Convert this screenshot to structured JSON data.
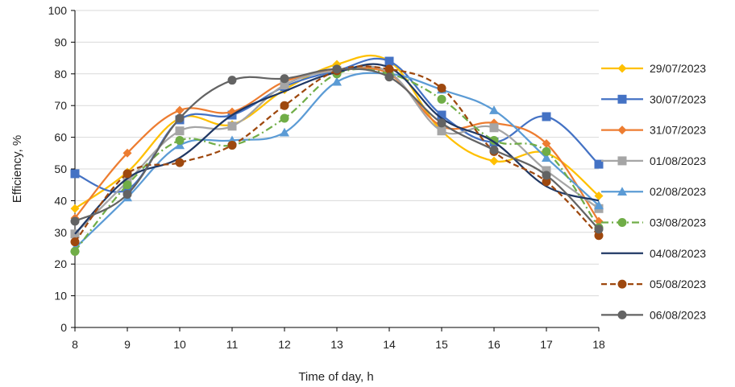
{
  "chart_data": {
    "type": "line",
    "title": "",
    "xlabel": "Time of day, h",
    "ylabel": "Efficiency, %",
    "xlim": [
      8,
      18
    ],
    "ylim": [
      0,
      100
    ],
    "x_ticks": [
      "8",
      "9",
      "10",
      "11",
      "12",
      "13",
      "14",
      "15",
      "16",
      "17",
      "18"
    ],
    "y_ticks": [
      "0",
      "10",
      "20",
      "30",
      "40",
      "50",
      "60",
      "70",
      "80",
      "90",
      "100"
    ],
    "grid": "horizontal",
    "legend_position": "right",
    "x": [
      8,
      9,
      10,
      11,
      12,
      13,
      14,
      15,
      16,
      17,
      18
    ],
    "series": [
      {
        "name": "29/07/2023",
        "color": "#FFC000",
        "marker": "diamond",
        "dash": "solid",
        "values": [
          37.5,
          49,
          66,
          64,
          75,
          83,
          84,
          62,
          52.5,
          55,
          41.5
        ]
      },
      {
        "name": "30/07/2023",
        "color": "#4472C4",
        "marker": "square",
        "dash": "solid",
        "values": [
          48.5,
          43.5,
          65.5,
          67,
          76,
          81,
          84,
          67,
          58.5,
          66.5,
          51.5
        ]
      },
      {
        "name": "31/07/2023",
        "color": "#ED7D31",
        "marker": "diamond",
        "dash": "solid",
        "values": [
          34.5,
          55,
          68.5,
          68,
          77.5,
          81,
          80,
          63.5,
          64.5,
          58,
          33.5
        ]
      },
      {
        "name": "01/08/2023",
        "color": "#A5A5A5",
        "marker": "square",
        "dash": "solid",
        "values": [
          29.5,
          46,
          62,
          63.5,
          76.5,
          81,
          80.5,
          62,
          63,
          49.5,
          37.5
        ]
      },
      {
        "name": "02/08/2023",
        "color": "#5B9BD5",
        "marker": "triangle",
        "dash": "solid",
        "values": [
          25,
          41,
          57.5,
          59,
          61.5,
          77.5,
          80,
          75,
          68.5,
          53.5,
          38.5
        ]
      },
      {
        "name": "03/08/2023",
        "color": "#70AD47",
        "marker": "circle",
        "dash": "dashdot",
        "values": [
          24,
          45,
          59,
          57.5,
          66,
          80,
          80,
          72,
          59,
          55.5,
          31.5
        ]
      },
      {
        "name": "04/08/2023",
        "color": "#203864",
        "marker": "none",
        "dash": "solid",
        "values": [
          29.5,
          47,
          53.5,
          67,
          74.5,
          80.5,
          82,
          66,
          58.5,
          44.5,
          40
        ]
      },
      {
        "name": "05/08/2023",
        "color": "#9E480E",
        "marker": "circle",
        "dash": "dash",
        "values": [
          27,
          48.5,
          52,
          57.5,
          70,
          81,
          81.5,
          75.5,
          55.5,
          46,
          29
        ]
      },
      {
        "name": "06/08/2023",
        "color": "#636363",
        "marker": "circle",
        "dash": "solid",
        "values": [
          33.5,
          42,
          66,
          78,
          78.5,
          81.5,
          79,
          64.5,
          56,
          48,
          31
        ]
      }
    ]
  }
}
